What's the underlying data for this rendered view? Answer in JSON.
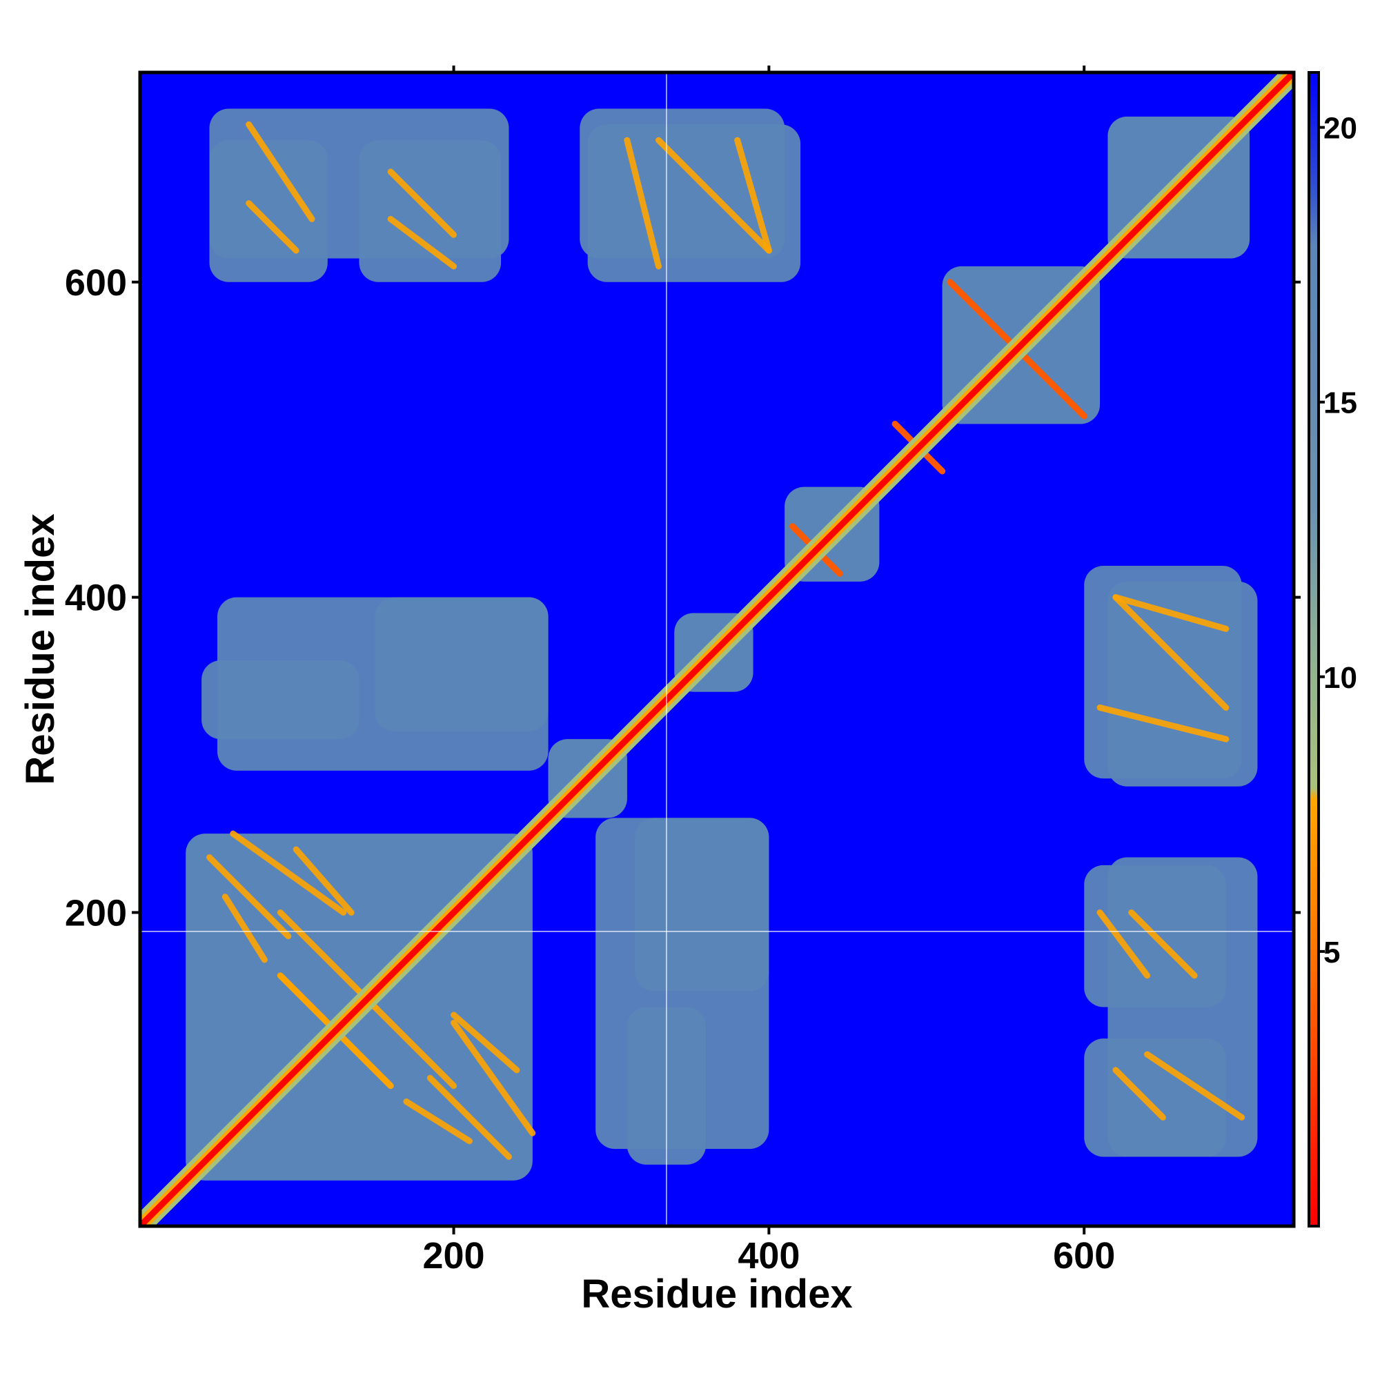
{
  "chart_data": {
    "type": "heatmap",
    "title": "",
    "xlabel": "Residue index",
    "ylabel": "Residue index",
    "xlim": [
      1,
      733
    ],
    "ylim": [
      1,
      733
    ],
    "x_ticks": [
      "200",
      "400",
      "600"
    ],
    "y_ticks": [
      "200",
      "400",
      "600"
    ],
    "x_tick_values": [
      200,
      400,
      600
    ],
    "y_tick_values": [
      200,
      400,
      600
    ],
    "colorbar": {
      "range": [
        0,
        21
      ],
      "tick_values": [
        5,
        10,
        15,
        20
      ],
      "ticks": [
        "5",
        "10",
        "15",
        "20"
      ],
      "placement": "right"
    },
    "color_scale": [
      {
        "max": 2,
        "color": "#ff0000"
      },
      {
        "max": 5,
        "color": "#ff5a00"
      },
      {
        "max": 8,
        "color": "#ffa500"
      },
      {
        "max": 11,
        "color": "#a9c27a"
      },
      {
        "max": 16,
        "color": "#5b86b8"
      },
      {
        "max": 21,
        "color": "#0000ff"
      }
    ],
    "background_value": 21,
    "diagonal_value": 1,
    "contact_regions": [
      {
        "x": [
          30,
          250
        ],
        "y": [
          30,
          250
        ],
        "value": 14
      },
      {
        "x": [
          260,
          310
        ],
        "y": [
          260,
          310
        ],
        "value": 14
      },
      {
        "x": [
          340,
          390
        ],
        "y": [
          340,
          390
        ],
        "value": 14
      },
      {
        "x": [
          410,
          470
        ],
        "y": [
          410,
          470
        ],
        "value": 12
      },
      {
        "x": [
          510,
          610
        ],
        "y": [
          510,
          610
        ],
        "value": 13
      },
      {
        "x": [
          615,
          705
        ],
        "y": [
          615,
          705
        ],
        "value": 14
      },
      {
        "x": [
          45,
          120
        ],
        "y": [
          600,
          690
        ],
        "value": 15
      },
      {
        "x": [
          140,
          230
        ],
        "y": [
          600,
          690
        ],
        "value": 15
      },
      {
        "x": [
          285,
          420
        ],
        "y": [
          600,
          700
        ],
        "value": 15
      },
      {
        "x": [
          615,
          710
        ],
        "y": [
          280,
          410
        ],
        "value": 15
      },
      {
        "x": [
          615,
          710
        ],
        "y": [
          45,
          235
        ],
        "value": 15
      },
      {
        "x": [
          50,
          260
        ],
        "y": [
          290,
          400
        ],
        "value": 16
      },
      {
        "x": [
          315,
          400
        ],
        "y": [
          150,
          260
        ],
        "value": 16
      },
      {
        "x": [
          310,
          360
        ],
        "y": [
          40,
          140
        ],
        "value": 16
      }
    ],
    "contact_lines": [
      {
        "x": [
          45,
          95
        ],
        "y": [
          235,
          185
        ],
        "value": 7
      },
      {
        "x": [
          100,
          135
        ],
        "y": [
          240,
          200
        ],
        "value": 7
      },
      {
        "x": [
          90,
          160
        ],
        "y": [
          160,
          90
        ],
        "value": 7
      },
      {
        "x": [
          140,
          200
        ],
        "y": [
          150,
          90
        ],
        "value": 7
      },
      {
        "x": [
          200,
          250
        ],
        "y": [
          130,
          60
        ],
        "value": 7
      },
      {
        "x": [
          170,
          210
        ],
        "y": [
          80,
          55
        ],
        "value": 7
      },
      {
        "x": [
          70,
          100
        ],
        "y": [
          650,
          620
        ],
        "value": 7
      },
      {
        "x": [
          160,
          200
        ],
        "y": [
          640,
          610
        ],
        "value": 7
      },
      {
        "x": [
          310,
          330
        ],
        "y": [
          690,
          610
        ],
        "value": 8
      },
      {
        "x": [
          380,
          400
        ],
        "y": [
          690,
          620
        ],
        "value": 8
      },
      {
        "x": [
          620,
          690
        ],
        "y": [
          400,
          330
        ],
        "value": 7
      },
      {
        "x": [
          640,
          700
        ],
        "y": [
          110,
          70
        ],
        "value": 7
      },
      {
        "x": [
          630,
          670
        ],
        "y": [
          200,
          160
        ],
        "value": 7
      },
      {
        "x": [
          515,
          600
        ],
        "y": [
          600,
          515
        ],
        "value": 4
      },
      {
        "x": [
          480,
          510
        ],
        "y": [
          510,
          480
        ],
        "value": 4
      },
      {
        "x": [
          415,
          445
        ],
        "y": [
          445,
          415
        ],
        "value": 4
      }
    ],
    "reference_lines": {
      "x": 335,
      "y": 188
    }
  }
}
